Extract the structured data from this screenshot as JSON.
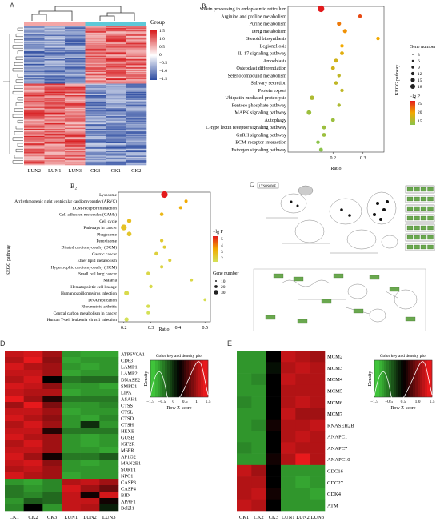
{
  "panels": {
    "A": {
      "letter": "A",
      "legend_title": "Group",
      "scale_ticks": [
        "1.5",
        "1.0",
        "0.5",
        "0",
        "−0.5",
        "−1.0",
        "−1.5"
      ],
      "samples": [
        "LUN2",
        "LUN1",
        "LUN3",
        "CK3",
        "CK1",
        "CK2"
      ],
      "group_colors": {
        "LUN": "#f4a6a6",
        "CK": "#5ec8d8"
      },
      "colors": {
        "high": "#d7191c",
        "mid": "#ffffff",
        "low": "#2c4ba0"
      }
    },
    "B1": {
      "letter": "B₁",
      "y_axis_label": "KEGG pathway",
      "x_axis_label": "Ratio",
      "size_legend_title": "Gene number",
      "size_legend_values": [
        "3",
        "6",
        "9",
        "12",
        "15",
        "18"
      ],
      "color_legend_title": "−lg P",
      "color_legend_ticks": [
        "25",
        "20",
        "15"
      ]
    },
    "B2": {
      "letter": "B₂",
      "y_axis_label": "KEGG pathway",
      "x_axis_label": "Ratio",
      "color_legend_title": "−lg P",
      "color_legend_ticks": [
        "5",
        "4",
        "3",
        "2"
      ],
      "size_legend_title": "Gene number",
      "size_legend_values": [
        "10",
        "20",
        "30"
      ]
    },
    "C": {
      "letter": "C",
      "header": "LYSOSOME"
    },
    "D": {
      "letter": "D",
      "genes": [
        "ATP6V0A1",
        "CD63",
        "LAMP1",
        "LAMP2",
        "DNASE2",
        "SMPD1",
        "LIPA",
        "ASAH1",
        "CTSS",
        "CTSL",
        "CTSD",
        "CTSH",
        "HEXB",
        "GUSB",
        "IGF2R",
        "M6PR",
        "AP1G2",
        "MAN2B1",
        "SORT1",
        "NPC1",
        "CASP3",
        "CASP4",
        "BID",
        "APAF1",
        "Bcl2l1"
      ],
      "samples": [
        "CK1",
        "CK2",
        "CK3",
        "LUN1",
        "LUN2",
        "LUN3"
      ],
      "key_title": "Color key and density plot",
      "key_ylabel": "Density",
      "key_xlabel": "Row Z-score",
      "key_ticks": [
        "−1.5",
        "−0.5",
        "0",
        "0.5",
        "1",
        "1.5"
      ]
    },
    "E": {
      "letter": "E",
      "genes": [
        "MCM2",
        "MCM3",
        "MCM4",
        "MCM5",
        "MCM6",
        "MCM7",
        "RNASEH2B",
        "ANAPC1",
        "ANAPC7",
        "ANAPC10",
        "CDC16",
        "CDC27",
        "CDK4",
        "ATM"
      ],
      "samples": [
        "CK1",
        "CK2",
        "CK3",
        "LUN1",
        "LUN2",
        "LUN3"
      ],
      "key_title": "Color key and density plot",
      "key_ylabel": "Density",
      "key_xlabel": "Row Z-score",
      "key_ticks": [
        "−1.5",
        "−0.5",
        "0.5",
        "1.0",
        "1.5"
      ]
    }
  },
  "chart_data": [
    {
      "type": "scatter",
      "panel": "B1",
      "xlabel": "Ratio",
      "ylabel": "KEGG pathway",
      "xlim": [
        0.05,
        0.37
      ],
      "xticks": [
        "0.2",
        "0.3"
      ],
      "categories": [
        "Protein processing in endoplasmic reticulum",
        "Arginine and proline metabolism",
        "Purine metabolism",
        "Drug metabolism",
        "Steroid biosynthesis",
        "Legionellosis",
        "IL-17 signaling pathway",
        "Amoebiasis",
        "Osteoclast differentiation",
        "Selenocompound metabolism",
        "Salivary secretion",
        "Protein export",
        "Ubiquitin mediated proteolysis",
        "Pentose phosphate pathway",
        "MAPK signaling pathway",
        "Autophagy",
        "C-type lectin receptor signaling pathway",
        "GnRH signaling pathway",
        "ECM-receptor interaction",
        "Estrogen signaling pathway"
      ],
      "ratio": [
        0.16,
        0.29,
        0.22,
        0.24,
        0.35,
        0.23,
        0.23,
        0.21,
        0.2,
        0.22,
        0.21,
        0.23,
        0.13,
        0.22,
        0.12,
        0.2,
        0.17,
        0.17,
        0.15,
        0.16
      ],
      "gene_number": [
        18,
        3,
        5,
        5,
        3,
        3,
        4,
        4,
        4,
        3,
        3,
        3,
        6,
        3,
        7,
        4,
        4,
        4,
        3,
        4
      ],
      "neg_log_p": [
        26,
        24,
        22,
        21,
        20,
        20,
        19,
        18,
        18,
        17,
        17,
        17,
        16,
        16,
        15,
        15,
        15,
        15,
        14,
        14
      ]
    },
    {
      "type": "scatter",
      "panel": "B2",
      "xlabel": "Ratio",
      "ylabel": "KEGG pathway",
      "xlim": [
        0.18,
        0.52
      ],
      "xticks": [
        "0.2",
        "0.3",
        "0.4",
        "0.5"
      ],
      "categories": [
        "Lysosome",
        "Arrhythmogenic right ventricular cardiomyopathy (ARVC)",
        "ECM-receptor interaction",
        "Cell adhesion molecules (CAMs)",
        "Cell cycle",
        "Pathways in cancer",
        "Phagosome",
        "Peroxisome",
        "Dilated cardiomyopathy (DCM)",
        "Gastric cancer",
        "Ether lipid metabolism",
        "Hypertrophic cardiomyopathy (HCM)",
        "Small cell lung cancer",
        "Malaria",
        "Hematopoietic cell lineage",
        "Human papillomavirus infection",
        "DNA replication",
        "Rheumatoid arthritis",
        "Central carbon metabolism in cancer",
        "Human T-cell leukemia virus 1 infection"
      ],
      "ratio": [
        0.35,
        0.43,
        0.41,
        0.34,
        0.22,
        0.2,
        0.22,
        0.34,
        0.35,
        0.32,
        0.37,
        0.34,
        0.29,
        0.45,
        0.3,
        0.21,
        0.5,
        0.29,
        0.29,
        0.21
      ],
      "gene_number": [
        33,
        4,
        4,
        6,
        10,
        25,
        12,
        5,
        4,
        6,
        4,
        4,
        5,
        3,
        5,
        14,
        3,
        5,
        4,
        10
      ],
      "neg_log_p": [
        5.2,
        3.6,
        3.4,
        3.2,
        3.0,
        2.9,
        2.8,
        2.7,
        2.6,
        2.5,
        2.5,
        2.4,
        2.3,
        2.3,
        2.2,
        2.2,
        2.1,
        2.1,
        2.0,
        2.0
      ]
    },
    {
      "type": "heatmap",
      "panel": "D",
      "rows": [
        "ATP6V0A1",
        "CD63",
        "LAMP1",
        "LAMP2",
        "DNASE2",
        "SMPD1",
        "LIPA",
        "ASAH1",
        "CTSS",
        "CTSL",
        "CTSD",
        "CTSH",
        "HEXB",
        "GUSB",
        "IGF2R",
        "M6PR",
        "AP1G2",
        "MAN2B1",
        "SORT1",
        "NPC1",
        "CASP3",
        "CASP4",
        "BID",
        "APAF1",
        "Bcl2l1"
      ],
      "columns": [
        "CK1",
        "CK2",
        "CK3",
        "LUN1",
        "LUN2",
        "LUN3"
      ],
      "values": [
        [
          1.1,
          1.2,
          0.9,
          -1.0,
          -1.1,
          -1.1
        ],
        [
          1.0,
          1.3,
          0.8,
          -1.1,
          -1.0,
          -1.0
        ],
        [
          1.2,
          1.0,
          0.9,
          -1.0,
          -1.1,
          -1.0
        ],
        [
          1.1,
          1.1,
          0.9,
          -1.1,
          -1.0,
          -1.0
        ],
        [
          1.0,
          1.2,
          0.0,
          -0.8,
          -0.7,
          -0.7
        ],
        [
          1.2,
          1.1,
          0.8,
          -1.0,
          -1.0,
          -1.1
        ],
        [
          1.1,
          1.0,
          1.0,
          -1.1,
          -1.0,
          -1.0
        ],
        [
          1.3,
          0.9,
          0.2,
          -0.8,
          -0.8,
          -0.8
        ],
        [
          0.9,
          1.3,
          0.7,
          -1.0,
          -1.0,
          -0.9
        ],
        [
          1.1,
          1.1,
          0.9,
          -1.1,
          -1.0,
          -1.0
        ],
        [
          1.2,
          1.0,
          0.8,
          -1.0,
          -1.1,
          -0.9
        ],
        [
          1.0,
          1.2,
          0.9,
          -1.0,
          -0.3,
          -1.0
        ],
        [
          1.1,
          1.1,
          0.2,
          -0.8,
          -0.8,
          -0.8
        ],
        [
          1.2,
          1.0,
          0.9,
          -1.0,
          -1.1,
          -1.0
        ],
        [
          1.0,
          1.2,
          0.9,
          -1.0,
          -1.1,
          -1.0
        ],
        [
          1.1,
          1.1,
          0.9,
          -1.0,
          -1.0,
          -1.1
        ],
        [
          1.2,
          0.9,
          0.1,
          -0.8,
          -0.8,
          -0.6
        ],
        [
          1.1,
          1.2,
          0.8,
          -1.0,
          -1.1,
          -1.0
        ],
        [
          1.0,
          1.1,
          0.9,
          -1.0,
          -1.0,
          -1.0
        ],
        [
          1.2,
          1.0,
          0.9,
          -1.1,
          -1.0,
          -1.0
        ],
        [
          -1.0,
          -1.1,
          -0.9,
          1.0,
          1.1,
          0.9
        ],
        [
          -0.8,
          -1.0,
          -0.9,
          1.2,
          0.9,
          0.6
        ],
        [
          -0.8,
          -0.9,
          -0.7,
          1.1,
          0.1,
          1.2
        ],
        [
          -1.0,
          -0.6,
          -0.7,
          1.1,
          1.1,
          0.1
        ],
        [
          -0.9,
          0.0,
          -1.0,
          1.1,
          1.0,
          -0.2
        ]
      ]
    },
    {
      "type": "heatmap",
      "panel": "E",
      "rows": [
        "MCM2",
        "MCM3",
        "MCM4",
        "MCM5",
        "MCM6",
        "MCM7",
        "RNASEH2B",
        "ANAPC1",
        "ANAPC7",
        "ANAPC10",
        "CDC16",
        "CDC27",
        "CDK4",
        "ATM"
      ],
      "columns": [
        "CK1",
        "CK2",
        "CK3",
        "LUN1",
        "LUN2",
        "LUN3"
      ],
      "values": [
        [
          -1.0,
          -1.0,
          0.0,
          1.1,
          1.0,
          0.9
        ],
        [
          -1.0,
          -1.0,
          -0.1,
          1.0,
          1.1,
          1.0
        ],
        [
          -1.0,
          -0.9,
          0.0,
          1.1,
          1.0,
          1.0
        ],
        [
          -1.0,
          -1.0,
          0.0,
          1.0,
          1.0,
          1.0
        ],
        [
          -0.9,
          -1.0,
          0.0,
          1.0,
          1.1,
          1.0
        ],
        [
          -1.0,
          -1.0,
          0.0,
          1.1,
          0.9,
          0.9
        ],
        [
          -1.0,
          -0.9,
          0.1,
          1.0,
          1.0,
          1.1
        ],
        [
          -1.0,
          -1.0,
          0.0,
          1.0,
          1.1,
          1.0
        ],
        [
          -0.9,
          -1.0,
          0.0,
          1.1,
          1.0,
          1.0
        ],
        [
          -1.0,
          -1.0,
          0.1,
          1.0,
          1.6,
          1.0
        ],
        [
          1.1,
          0.9,
          0.0,
          -1.0,
          -1.0,
          -1.0
        ],
        [
          1.0,
          1.0,
          0.0,
          -1.0,
          -1.1,
          -1.0
        ],
        [
          1.0,
          1.1,
          0.1,
          -1.0,
          -1.0,
          -1.1
        ],
        [
          1.1,
          1.0,
          0.0,
          -1.0,
          -1.0,
          -1.0
        ]
      ]
    }
  ]
}
